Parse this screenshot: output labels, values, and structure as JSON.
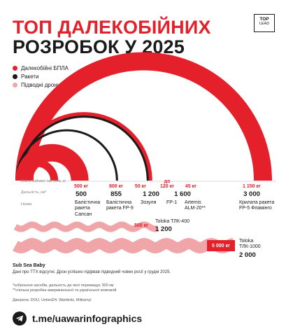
{
  "header": {
    "title_line1": "ТОП ДАЛЕКОБІЙНИХ",
    "title_line2": "РОЗРОБОК У 2025",
    "logo_top": "TOP",
    "logo_bottom": "LEAD"
  },
  "colors": {
    "red": "#e4202a",
    "black": "#1a1a1a",
    "pink": "#f0a5a8"
  },
  "legend": [
    {
      "label": "Далекобійні БПЛА",
      "color": "#e4202a"
    },
    {
      "label": "Ракети",
      "color": "#1a1a1a"
    },
    {
      "label": "Підводні дрони",
      "color": "#f0a5a8"
    }
  ],
  "row_labels": {
    "warhead": "Маса бойової частини, кг",
    "range": "Дальність, км*",
    "name": "Назва"
  },
  "chart_data": {
    "type": "arc",
    "unit_range": "км",
    "unit_warhead": "кг",
    "items": [
      {
        "name": "Балістична ракета Сапсан",
        "category": "Ракети",
        "range_km": 500,
        "range_label": "500",
        "warhead_label": "500 кг"
      },
      {
        "name": "Балістична ракета FP-9",
        "category": "Ракети",
        "range_km": 855,
        "range_label": "855",
        "warhead_label": "800 кг"
      },
      {
        "name": "Зозуля",
        "category": "Далекобійні БПЛА",
        "range_km": 1200,
        "range_label": "1 200",
        "warhead_label": "50 кг"
      },
      {
        "name": "FP-1",
        "category": "Далекобійні БПЛА",
        "range_km": 1600,
        "range_label": "1 600",
        "warhead_label": "до 120 кг"
      },
      {
        "name": "Artemis ALM-20**",
        "category": "Далекобійні БПЛА",
        "range_km": 1600,
        "range_label": "",
        "warhead_label": "45 кг"
      },
      {
        "name": "Крилата ракета FP-5 Фламінго",
        "category": "Ракети",
        "range_km": 3000,
        "range_label": "3 000",
        "warhead_label": "1 150 кг"
      },
      {
        "name": "Toloka ТЛК-400",
        "category": "Підводні дрони",
        "range_km": 1200,
        "range_label": "1 200",
        "warhead_label": "500 кг"
      },
      {
        "name": "Toloka ТЛК-1000",
        "category": "Підводні дрони",
        "range_km": 2000,
        "range_label": "2 000",
        "warhead_label": "5 000 кг"
      }
    ]
  },
  "notes": {
    "sub_title": "Sub Sea Baby",
    "sub_text": "Дані про ТТХ відсутні. Дрон успішно підірвав підводний човен росії у грудні 2025.",
    "footnote1": "*озброєння засобів, дальність до якої перевищує 300 км",
    "footnote2": "**спільна розробка американської та української компаній",
    "sources": "Джерела: DOU, United24, Warbirds, Militarnyi"
  },
  "footer": {
    "telegram": "t.me/uawarinfographics"
  }
}
